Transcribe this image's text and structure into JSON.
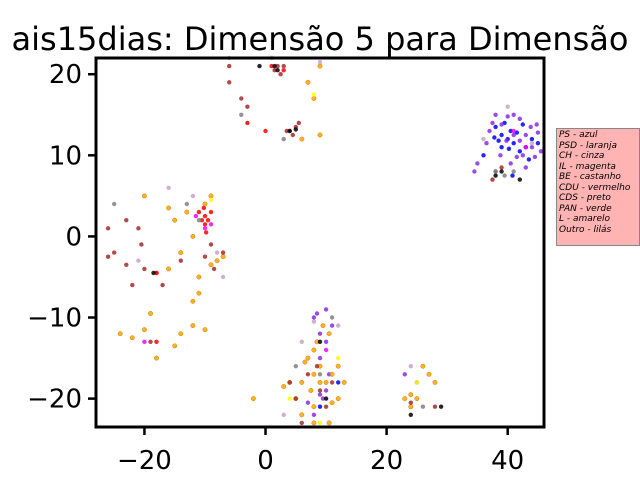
{
  "chart_data": {
    "type": "scatter",
    "title": "ais15dias: Dimensão 5 para Dimensão",
    "xlabel": "",
    "ylabel": "",
    "xlim": [
      -28,
      46
    ],
    "ylim": [
      -23.5,
      22
    ],
    "xticks": [
      -20,
      0,
      20,
      40
    ],
    "yticks": [
      -20,
      -10,
      0,
      10,
      20
    ],
    "xtick_labels": [
      "−20",
      "0",
      "20",
      "40"
    ],
    "ytick_labels": [
      "−20",
      "−10",
      "0",
      "10",
      "20"
    ],
    "legend_position": "right",
    "legend_items": [
      "PS - azul",
      "PSD - laranja",
      "CH - cinza",
      "IL - magenta",
      "BE - castanho",
      "CDU - vermelho",
      "CDS - preto",
      "PAN - verde",
      "L - amarelo",
      "Outro - lilás"
    ],
    "colors": {
      "PS": "#0000ff",
      "PSD": "#ffa500",
      "CH": "#808080",
      "IL": "#ff00ff",
      "BE": "#a52a2a",
      "CDU": "#ff0000",
      "CDS": "#000000",
      "PAN": "#008000",
      "L": "#ffff00",
      "Outro": "#c8a2c8",
      "violet": "#8a2be2",
      "orange_edge": "#cc7a00"
    },
    "series": [
      {
        "color": "#0000ff",
        "points": [
          [
            40,
            12
          ],
          [
            41,
            11.5
          ],
          [
            39,
            12.5
          ],
          [
            38.5,
            11.8
          ],
          [
            40.5,
            13
          ],
          [
            42,
            10.5
          ],
          [
            39.5,
            14
          ],
          [
            37.8,
            12.2
          ],
          [
            41.5,
            12.8
          ],
          [
            43,
            11
          ],
          [
            38,
            13.5
          ],
          [
            40.2,
            10.8
          ],
          [
            44,
            12
          ],
          [
            42.5,
            13.8
          ],
          [
            39,
            11
          ],
          [
            45,
            11.5
          ],
          [
            43.5,
            9.5
          ],
          [
            36,
            10
          ],
          [
            12,
            -18
          ],
          [
            9,
            -21
          ],
          [
            40.8,
            7.5
          ]
        ]
      },
      {
        "color": "#8a2be2",
        "points": [
          [
            41,
            12.5
          ],
          [
            42,
            11.8
          ],
          [
            43,
            12.5
          ],
          [
            44,
            11
          ],
          [
            45,
            12.8
          ],
          [
            42.5,
            10
          ],
          [
            43.8,
            13.5
          ],
          [
            44.5,
            9.8
          ],
          [
            40,
            14.8
          ],
          [
            38,
            15
          ],
          [
            37,
            13
          ],
          [
            41.5,
            9.8
          ],
          [
            39,
            13.8
          ],
          [
            45.5,
            10.5
          ],
          [
            42,
            14.5
          ],
          [
            36.5,
            11.5
          ],
          [
            35,
            9
          ],
          [
            43,
            8.5
          ],
          [
            44.8,
            13.8
          ],
          [
            40.5,
            9
          ],
          [
            38.8,
            10
          ],
          [
            37.5,
            14
          ],
          [
            41,
            15
          ],
          [
            34.5,
            8
          ],
          [
            39.8,
            11.8
          ],
          [
            8,
            -10
          ],
          [
            9,
            -12
          ],
          [
            10,
            -13
          ],
          [
            8.5,
            -9.5
          ],
          [
            11,
            -11
          ],
          [
            9.5,
            -20
          ],
          [
            10,
            -19
          ],
          [
            8,
            -22
          ],
          [
            7,
            -20.5
          ],
          [
            9,
            -15
          ],
          [
            10.5,
            -17
          ],
          [
            25,
            -18
          ],
          [
            23,
            -17
          ],
          [
            9,
            -19.5
          ],
          [
            10,
            -9
          ]
        ]
      },
      {
        "color": "#ffa500",
        "points": [
          [
            -20,
            5
          ],
          [
            -18,
            -15
          ],
          [
            -15,
            -13.5
          ],
          [
            -14,
            -12
          ],
          [
            -12,
            -11
          ],
          [
            -10,
            -11.5
          ],
          [
            -12,
            -8
          ],
          [
            -11,
            -5
          ],
          [
            -8,
            -3
          ],
          [
            -14,
            -2
          ],
          [
            -16,
            -4
          ],
          [
            -9,
            -3.5
          ],
          [
            -7,
            -2.5
          ],
          [
            -20,
            -11.5
          ],
          [
            -22,
            -12.5
          ],
          [
            -24,
            -12
          ],
          [
            -19,
            -9.5
          ],
          [
            -15,
            2
          ],
          [
            -12,
            0
          ],
          [
            -10,
            4
          ],
          [
            -9,
            5
          ],
          [
            -13,
            3
          ],
          [
            -16,
            3.5
          ],
          [
            -11,
            -7
          ],
          [
            7,
            -15
          ],
          [
            8,
            -14
          ],
          [
            8,
            -17
          ],
          [
            9,
            -18
          ],
          [
            6,
            -18
          ],
          [
            5,
            -20
          ],
          [
            6,
            -22
          ],
          [
            10,
            -18
          ],
          [
            11,
            -17
          ],
          [
            12,
            -16
          ],
          [
            9.5,
            -11
          ],
          [
            10.5,
            -12
          ],
          [
            8.5,
            -13
          ],
          [
            9,
            -16
          ],
          [
            7.5,
            -19
          ],
          [
            8,
            -21
          ],
          [
            11,
            -20.5
          ],
          [
            23,
            -20
          ],
          [
            24,
            -21
          ],
          [
            24,
            -19.5
          ],
          [
            25,
            -20
          ],
          [
            26,
            -16
          ],
          [
            27,
            -17
          ],
          [
            28,
            -18
          ],
          [
            13,
            -18
          ],
          [
            12,
            -20
          ],
          [
            6.5,
            -15.5
          ],
          [
            8,
            -23
          ],
          [
            4,
            -18
          ],
          [
            3,
            -18.5
          ],
          [
            9,
            21
          ],
          [
            8,
            17
          ],
          [
            6,
            12
          ],
          [
            9,
            12.5
          ],
          [
            7,
            19
          ],
          [
            -2,
            -20
          ],
          [
            10.5,
            -23
          ]
        ]
      },
      {
        "color": "#a52a2a",
        "points": [
          [
            -22,
            -6
          ],
          [
            -20,
            -4
          ],
          [
            -18,
            -4.5
          ],
          [
            -17,
            -6
          ],
          [
            -23,
            -3.5
          ],
          [
            -25,
            -2
          ],
          [
            -26,
            -2.5
          ],
          [
            -21,
            1
          ],
          [
            -20.5,
            -1
          ],
          [
            -14,
            -3
          ],
          [
            -10,
            -2.5
          ],
          [
            -8.5,
            -4
          ],
          [
            -19,
            -13
          ],
          [
            -23,
            2
          ],
          [
            -26,
            1
          ],
          [
            -9,
            -1
          ],
          [
            -7,
            -2
          ],
          [
            4,
            13
          ],
          [
            5,
            13.5
          ],
          [
            4.5,
            12.5
          ],
          [
            3.5,
            13
          ],
          [
            5.5,
            14
          ],
          [
            2,
            21
          ],
          [
            1.5,
            20.5
          ],
          [
            2.5,
            20
          ],
          [
            3,
            21
          ],
          [
            -3,
            16
          ],
          [
            -4,
            17
          ],
          [
            5,
            -20
          ],
          [
            4,
            -18
          ],
          [
            9,
            -19
          ],
          [
            10,
            -21
          ],
          [
            11,
            -18
          ],
          [
            7,
            -17
          ],
          [
            8.5,
            -16
          ],
          [
            38,
            8
          ],
          [
            37.5,
            7
          ],
          [
            39,
            8.5
          ],
          [
            -6,
            19
          ],
          [
            -6,
            21
          ],
          [
            6,
            -23
          ],
          [
            24,
            -20.5
          ],
          [
            28,
            -21
          ]
        ]
      },
      {
        "color": "#ff0000",
        "points": [
          [
            -10,
            2.5
          ],
          [
            -9.5,
            2
          ],
          [
            -10.5,
            2
          ],
          [
            -9,
            3
          ],
          [
            -10,
            1.5
          ],
          [
            -11,
            3
          ],
          [
            -9.8,
            0.5
          ],
          [
            -10.2,
            3.5
          ],
          [
            -18,
            -4.5
          ],
          [
            -18,
            -13
          ],
          [
            0,
            13
          ],
          [
            -3,
            14
          ],
          [
            1,
            21
          ],
          [
            3,
            20.5
          ]
        ]
      },
      {
        "color": "#000000",
        "points": [
          [
            1.5,
            21
          ],
          [
            2,
            20.5
          ],
          [
            4,
            13
          ],
          [
            5,
            13.2
          ],
          [
            38,
            7.5
          ],
          [
            39,
            8
          ],
          [
            42,
            7
          ],
          [
            -18.5,
            -4.5
          ],
          [
            9,
            -13
          ],
          [
            10,
            -20
          ],
          [
            29,
            -21
          ],
          [
            24,
            -22
          ],
          [
            -1,
            21
          ]
        ]
      },
      {
        "color": "#808080",
        "points": [
          [
            38,
            8
          ],
          [
            39.5,
            7.5
          ],
          [
            41,
            8
          ],
          [
            -11,
            2
          ],
          [
            -13,
            4
          ],
          [
            -4,
            15
          ],
          [
            5,
            -16
          ],
          [
            9,
            -17
          ],
          [
            11,
            -10
          ],
          [
            26,
            -21
          ],
          [
            -25,
            4
          ],
          [
            3,
            12
          ]
        ]
      },
      {
        "color": "#ff00ff",
        "points": [
          [
            -10,
            1
          ],
          [
            -11.5,
            2.5
          ],
          [
            -9,
            1.5
          ],
          [
            -20,
            -13
          ],
          [
            41,
            13
          ],
          [
            43,
            11
          ],
          [
            10,
            -14
          ]
        ]
      },
      {
        "color": "#ffff00",
        "points": [
          [
            -9,
            4.5
          ],
          [
            8,
            17.5
          ],
          [
            4,
            -20
          ],
          [
            9,
            -23
          ],
          [
            12,
            -15
          ],
          [
            25,
            -18
          ]
        ]
      },
      {
        "color": "#c8a2c8",
        "points": [
          [
            -8,
            -2
          ],
          [
            -7,
            -5
          ],
          [
            -21,
            -3
          ],
          [
            -16,
            6
          ],
          [
            -12,
            5
          ],
          [
            8,
            -10.5
          ],
          [
            12,
            -11
          ],
          [
            6,
            -13
          ],
          [
            44,
            11.5
          ],
          [
            40,
            16
          ],
          [
            36,
            12
          ],
          [
            3,
            -22
          ],
          [
            24,
            -16
          ],
          [
            -6,
            22
          ],
          [
            1,
            22
          ],
          [
            9,
            21.5
          ]
        ]
      }
    ]
  }
}
